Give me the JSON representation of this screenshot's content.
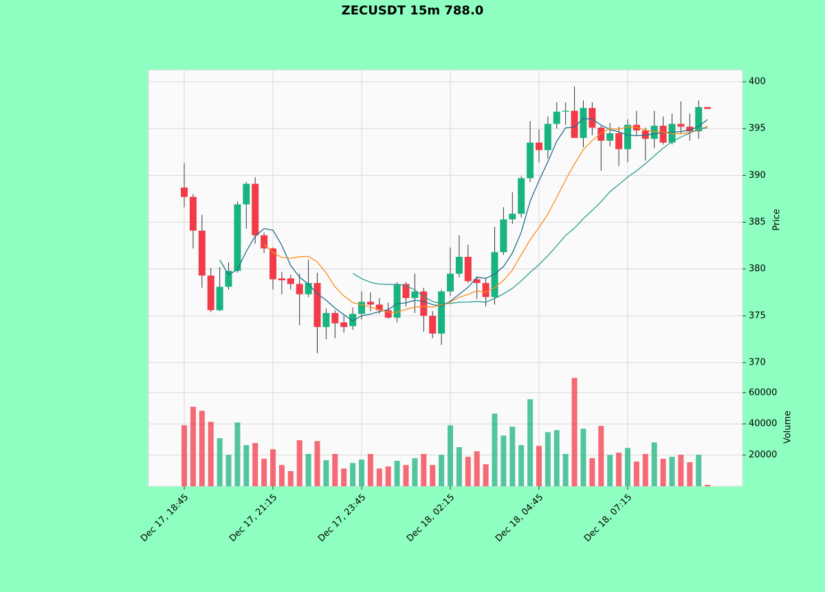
{
  "chart_data": {
    "type": "candlestick",
    "title": "ZECUSDT 15m 788.0",
    "categories": [
      "Dec 17, 18:45",
      null,
      null,
      null,
      null,
      null,
      null,
      null,
      null,
      null,
      "Dec 17, 21:15",
      null,
      null,
      null,
      null,
      null,
      null,
      null,
      null,
      null,
      "Dec 17, 23:45",
      null,
      null,
      null,
      null,
      null,
      null,
      null,
      null,
      null,
      "Dec 18, 02:15",
      null,
      null,
      null,
      null,
      null,
      null,
      null,
      null,
      null,
      "Dec 18, 04:45",
      null,
      null,
      null,
      null,
      null,
      null,
      null,
      null,
      null,
      "Dec 18, 07:15",
      null,
      null,
      null,
      null,
      null,
      null,
      null,
      null,
      null
    ],
    "open": [
      388.7,
      387.7,
      384.1,
      379.3,
      375.6,
      378.1,
      379.8,
      386.9,
      389.1,
      383.6,
      382.2,
      379.0,
      379.0,
      378.4,
      377.3,
      378.5,
      373.8,
      375.3,
      374.3,
      373.9,
      375.2,
      376.5,
      376.2,
      375.6,
      374.8,
      378.4,
      376.9,
      377.6,
      375.0,
      373.1,
      377.6,
      379.5,
      381.3,
      378.9,
      378.5,
      377.0,
      381.8,
      385.3,
      385.9,
      389.7,
      393.5,
      392.7,
      395.5,
      396.8,
      396.9,
      394.0,
      397.2,
      395.1,
      393.7,
      394.5,
      392.8,
      395.4,
      394.8,
      393.9,
      395.3,
      393.5,
      395.5,
      395.2,
      394.7,
      397.3
    ],
    "high": [
      391.3,
      388.0,
      385.8,
      380.1,
      380.2,
      380.7,
      387.2,
      389.3,
      389.8,
      383.9,
      382.3,
      379.7,
      379.4,
      379.5,
      381.0,
      379.6,
      375.8,
      375.6,
      375.0,
      375.9,
      377.6,
      377.5,
      376.9,
      376.4,
      378.6,
      378.6,
      379.5,
      378.0,
      375.5,
      377.8,
      382.3,
      383.6,
      382.6,
      379.2,
      379.0,
      384.5,
      386.6,
      388.2,
      389.9,
      395.8,
      394.9,
      396.3,
      397.8,
      397.8,
      399.5,
      398.0,
      397.8,
      395.3,
      395.6,
      395.2,
      396.0,
      396.9,
      395.1,
      396.9,
      396.3,
      396.6,
      397.9,
      396.6,
      398.0,
      397.3
    ],
    "low": [
      386.6,
      382.2,
      378.0,
      375.4,
      375.5,
      377.8,
      379.6,
      384.3,
      382.7,
      381.7,
      377.8,
      377.3,
      377.8,
      374.0,
      377.0,
      371.0,
      372.5,
      372.6,
      373.2,
      373.5,
      374.6,
      375.5,
      375.2,
      374.7,
      374.3,
      376.0,
      375.3,
      373.3,
      372.6,
      371.9,
      377.1,
      379.1,
      378.5,
      376.8,
      376.0,
      376.2,
      381.5,
      384.8,
      385.5,
      389.3,
      391.4,
      391.8,
      395.0,
      395.4,
      394.0,
      393.0,
      394.3,
      390.5,
      393.1,
      391.0,
      391.4,
      394.3,
      391.6,
      392.9,
      393.3,
      393.3,
      394.4,
      393.7,
      393.9,
      397.1
    ],
    "close": [
      387.7,
      384.1,
      379.3,
      375.6,
      378.1,
      379.8,
      386.9,
      389.1,
      383.6,
      382.2,
      378.9,
      378.8,
      378.4,
      377.3,
      378.5,
      373.8,
      375.3,
      374.2,
      373.8,
      375.2,
      376.5,
      376.2,
      375.6,
      374.8,
      378.4,
      376.9,
      377.6,
      375.0,
      373.1,
      377.6,
      379.5,
      381.3,
      378.7,
      378.5,
      377.0,
      381.8,
      385.3,
      385.9,
      389.7,
      393.5,
      392.7,
      395.5,
      396.8,
      396.9,
      394.0,
      397.2,
      395.1,
      393.7,
      394.5,
      392.8,
      395.4,
      394.8,
      393.9,
      395.3,
      393.5,
      395.5,
      395.2,
      394.7,
      397.3,
      397.1
    ],
    "volume": [
      39100,
      51000,
      48400,
      41300,
      30800,
      20200,
      40900,
      26400,
      27700,
      17600,
      23700,
      13600,
      9700,
      29500,
      20700,
      29000,
      16700,
      20700,
      11400,
      14900,
      17100,
      20700,
      11400,
      12700,
      16300,
      13600,
      18000,
      20700,
      13600,
      20200,
      39100,
      25100,
      18900,
      22400,
      14100,
      46600,
      32500,
      38200,
      26400,
      55800,
      25900,
      34700,
      36000,
      20700,
      69500,
      36900,
      18000,
      38700,
      20200,
      21500,
      24600,
      15800,
      20700,
      28100,
      17600,
      18900,
      20200,
      15400,
      20200,
      900
    ],
    "ylabel": "Price",
    "ylim": [
      370,
      401.25
    ],
    "yticks": [
      370,
      375,
      380,
      385,
      390,
      395,
      400
    ],
    "vlabel": "Volume",
    "vlim": [
      0,
      79300
    ],
    "vticks": [
      20000,
      40000,
      60000
    ],
    "up_color": "#18b47f",
    "down_color": "#f23a48",
    "mav": [
      5,
      10,
      20
    ],
    "mav_colors": [
      "#1f6f8b",
      "#ff8c1a",
      "#2a9d8f"
    ],
    "grid": true
  }
}
